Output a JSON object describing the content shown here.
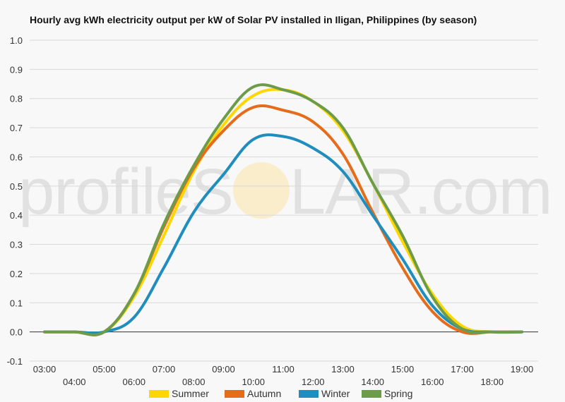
{
  "chart_data": {
    "type": "line",
    "title": "Hourly avg kWh electricity output per kW of Solar PV installed in Iligan, Philippines (by season)",
    "xlabel": "",
    "ylabel": "",
    "ylim": [
      -0.1,
      1.0
    ],
    "yticks": [
      -0.1,
      0.0,
      0.1,
      0.2,
      0.3,
      0.4,
      0.5,
      0.6,
      0.7,
      0.8,
      0.9,
      1.0
    ],
    "ytick_labels": [
      "-0.1",
      "0.0",
      "0.1",
      "0.2",
      "0.3",
      "0.4",
      "0.5",
      "0.6",
      "0.7",
      "0.8",
      "0.9",
      "1.0"
    ],
    "categories": [
      "03:00",
      "04:00",
      "05:00",
      "06:00",
      "07:00",
      "08:00",
      "09:00",
      "10:00",
      "11:00",
      "12:00",
      "13:00",
      "14:00",
      "15:00",
      "16:00",
      "17:00",
      "18:00",
      "19:00"
    ],
    "grid": true,
    "legend_position": "bottom",
    "series": [
      {
        "name": "Summer",
        "color": "#ffd700",
        "values": [
          0.0,
          0.0,
          0.0,
          0.12,
          0.33,
          0.55,
          0.71,
          0.81,
          0.83,
          0.79,
          0.69,
          0.51,
          0.31,
          0.13,
          0.02,
          0.0,
          0.0
        ]
      },
      {
        "name": "Autumn",
        "color": "#e46c1a",
        "values": [
          0.0,
          0.0,
          0.0,
          0.13,
          0.36,
          0.56,
          0.69,
          0.77,
          0.76,
          0.72,
          0.61,
          0.41,
          0.22,
          0.07,
          0.0,
          0.0,
          0.0
        ]
      },
      {
        "name": "Winter",
        "color": "#1f8ebe",
        "values": [
          0.0,
          0.0,
          0.0,
          0.05,
          0.22,
          0.41,
          0.54,
          0.66,
          0.67,
          0.63,
          0.55,
          0.4,
          0.25,
          0.09,
          0.01,
          0.0,
          0.0
        ]
      },
      {
        "name": "Spring",
        "color": "#6c9c4a",
        "values": [
          0.0,
          0.0,
          0.0,
          0.13,
          0.37,
          0.57,
          0.73,
          0.84,
          0.83,
          0.79,
          0.7,
          0.51,
          0.33,
          0.12,
          0.01,
          0.0,
          0.0
        ]
      }
    ]
  },
  "watermark": {
    "left": "profileS",
    "right": "LAR.com"
  }
}
